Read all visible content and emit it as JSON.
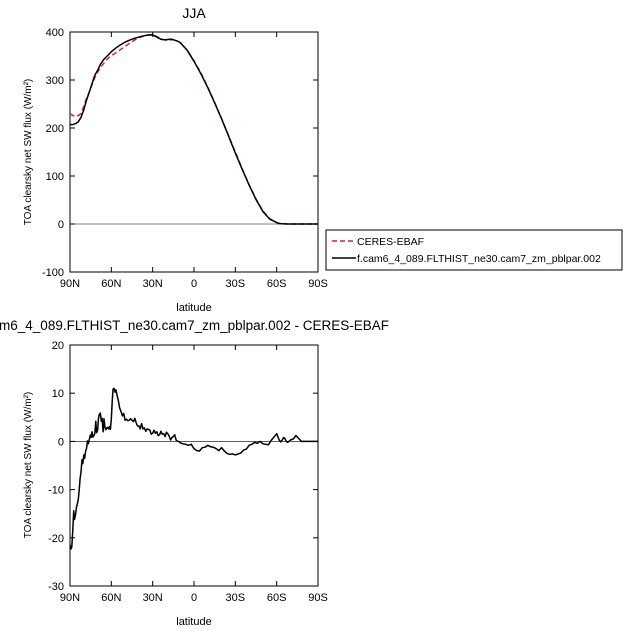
{
  "chart_data": [
    {
      "type": "line",
      "title": "JJA",
      "xlabel": "latitude",
      "ylabel": "TOA clearsky net SW flux (W/m²)",
      "xlim": [
        90,
        -90
      ],
      "ylim": [
        -100,
        400
      ],
      "xtick_values": [
        90,
        60,
        30,
        0,
        -30,
        -60,
        -90
      ],
      "xtick_labels": [
        "90N",
        "60N",
        "30N",
        "0",
        "30S",
        "60S",
        "90S"
      ],
      "ytick_values": [
        -100,
        0,
        100,
        200,
        300,
        400
      ],
      "ytick_labels": [
        "-100",
        "0",
        "100",
        "200",
        "300",
        "400"
      ],
      "legend_position": "right, outside plot",
      "series": [
        {
          "name": "CERES-EBAF",
          "color": "#dd2222",
          "dash": "dashed",
          "x": [
            90,
            88,
            86,
            84,
            82,
            80,
            78,
            76,
            74,
            72,
            70,
            68,
            66,
            64,
            62,
            60,
            57,
            54,
            50,
            46,
            42,
            38,
            35,
            32,
            30,
            28,
            26,
            24,
            22,
            20,
            18,
            16,
            14,
            12,
            10,
            5,
            0,
            -5,
            -10,
            -15,
            -20,
            -25,
            -30,
            -35,
            -40,
            -45,
            -50,
            -55,
            -60,
            -62,
            -64,
            -66,
            -68,
            -70,
            -75,
            -80,
            -90
          ],
          "values": [
            230,
            226,
            224,
            226,
            230,
            245,
            262,
            275,
            290,
            305,
            316,
            326,
            333,
            340,
            346,
            351,
            356,
            362,
            370,
            378,
            385,
            390,
            393,
            394,
            393,
            392,
            389,
            386,
            384,
            383,
            383,
            384,
            383,
            381,
            378,
            363,
            340,
            315,
            285,
            253,
            220,
            185,
            150,
            115,
            82,
            52,
            27,
            11,
            3,
            1,
            0.5,
            0.2,
            0,
            0,
            0,
            0,
            0
          ]
        },
        {
          "name": "f.cam6_4_089.FLTHIST_ne30.cam7_zm_pblpar.002",
          "color": "#000000",
          "dash": "solid",
          "x": [
            90,
            88,
            86,
            84,
            82,
            80,
            78,
            76,
            74,
            72,
            70,
            68,
            66,
            64,
            62,
            60,
            57,
            54,
            50,
            46,
            42,
            38,
            35,
            32,
            30,
            28,
            26,
            24,
            22,
            20,
            18,
            16,
            14,
            12,
            10,
            5,
            0,
            -5,
            -10,
            -15,
            -20,
            -25,
            -30,
            -35,
            -40,
            -45,
            -50,
            -55,
            -60,
            -62,
            -64,
            -66,
            -68,
            -70,
            -75,
            -80,
            -90
          ],
          "values": [
            207,
            207,
            209,
            213,
            222,
            238,
            258,
            275,
            292,
            310,
            320,
            332,
            341,
            347,
            353,
            359,
            366,
            372,
            379,
            384,
            388,
            391,
            393,
            394,
            394,
            391,
            388,
            385,
            384,
            384,
            385,
            385,
            383,
            381,
            378,
            362,
            339,
            313,
            284,
            252,
            219,
            184,
            148,
            114,
            81,
            51,
            26,
            10,
            3,
            1,
            0.5,
            0.2,
            0,
            0,
            0,
            0,
            0
          ]
        }
      ]
    },
    {
      "type": "line",
      "title": "m6_4_089.FLTHIST_ne30.cam7_zm_pblpar.002 - CERES-EBAF",
      "xlabel": "latitude",
      "ylabel": "TOA clearsky net SW flux (W/m²)",
      "xlim": [
        90,
        -90
      ],
      "ylim": [
        -30,
        20
      ],
      "xtick_values": [
        90,
        60,
        30,
        0,
        -30,
        -60,
        -90
      ],
      "xtick_labels": [
        "90N",
        "60N",
        "30N",
        "0",
        "30S",
        "60S",
        "90S"
      ],
      "ytick_values": [
        -30,
        -20,
        -10,
        0,
        10,
        20
      ],
      "ytick_labels": [
        "-30",
        "-20",
        "-10",
        "0",
        "10",
        "20"
      ],
      "series": [
        {
          "color": "#000000",
          "dash": "solid",
          "x": [
            90,
            89.3,
            88.7,
            88,
            87.3,
            86.7,
            86,
            85.3,
            84.7,
            84,
            83.3,
            82.7,
            82,
            81.3,
            80.7,
            80,
            79.3,
            78.7,
            78,
            77.3,
            76.7,
            76,
            75.3,
            74.7,
            74,
            73.3,
            72.7,
            72,
            71.3,
            70.7,
            70,
            69.3,
            68.7,
            68,
            67.3,
            66.7,
            66,
            65.3,
            64.7,
            64,
            63.3,
            62.7,
            62,
            61.3,
            60.7,
            60,
            59.3,
            58.7,
            58,
            57.3,
            56.7,
            56,
            55,
            54,
            53,
            52,
            51,
            50,
            49,
            48,
            47,
            46,
            45,
            44,
            43,
            42,
            41,
            40,
            39,
            38,
            37,
            36,
            35,
            34,
            33,
            32,
            31,
            30,
            29,
            28,
            27,
            26,
            25,
            24,
            23,
            22,
            21,
            20,
            19,
            18,
            17,
            16,
            15,
            14,
            13,
            12,
            11,
            10,
            8,
            6,
            4,
            2,
            0,
            -2,
            -4,
            -6,
            -8,
            -10,
            -12,
            -14,
            -16,
            -18,
            -20,
            -22,
            -24,
            -26,
            -28,
            -30,
            -32,
            -34,
            -36,
            -38,
            -40,
            -42,
            -44,
            -46,
            -48,
            -50,
            -52,
            -54,
            -56,
            -58,
            -60,
            -61,
            -62,
            -63,
            -64,
            -65,
            -66,
            -67,
            -68,
            -70,
            -72,
            -74,
            -76,
            -78,
            -80,
            -82,
            -84,
            -86,
            -88,
            -90
          ],
          "values": [
            -21.5,
            -22.3,
            -21.9,
            -18.4,
            -14.4,
            -16.2,
            -15.2,
            -13.6,
            -13.0,
            -12.0,
            -10.1,
            -7.7,
            -6.4,
            -3.8,
            -4.6,
            -2.8,
            -3.5,
            -2.0,
            -1.5,
            0.1,
            -0.5,
            0.4,
            1.3,
            0.8,
            2.0,
            0.9,
            1.2,
            1.6,
            4.2,
            1.8,
            2.3,
            4.8,
            5.6,
            5.9,
            4.2,
            4.8,
            2.0,
            4.7,
            3.0,
            2.4,
            2.8,
            2.9,
            2.6,
            3.1,
            2.5,
            4.6,
            8.6,
            10.9,
            11.0,
            10.2,
            10.7,
            9.8,
            8.6,
            7.0,
            6.2,
            5.3,
            5.8,
            4.4,
            4.6,
            4.3,
            4.4,
            4.7,
            4.4,
            4.1,
            4.8,
            3.9,
            3.2,
            3.2,
            2.6,
            3.7,
            2.6,
            2.8,
            2.1,
            2.6,
            2.5,
            2.3,
            1.5,
            1.7,
            2.3,
            1.7,
            2.0,
            1.2,
            1.4,
            2.1,
            1.5,
            1.6,
            1.0,
            1.9,
            1.6,
            1.1,
            0.3,
            0.8,
            1.0,
            1.4,
            0.3,
            0.0,
            0.0,
            -0.3,
            -0.5,
            -0.6,
            -0.8,
            -0.6,
            -1.5,
            -1.9,
            -2.0,
            -1.3,
            -1.2,
            -0.8,
            -1.1,
            -1.2,
            -1.5,
            -1.9,
            -1.3,
            -2.0,
            -2.5,
            -2.7,
            -2.6,
            -2.8,
            -2.6,
            -2.4,
            -1.8,
            -1.6,
            -0.8,
            -0.6,
            -0.2,
            -0.4,
            0.0,
            -0.5,
            -0.6,
            -0.7,
            0.2,
            0.9,
            1.6,
            0.9,
            0.2,
            -0.1,
            0.3,
            0.8,
            0.6,
            0.0,
            -0.2,
            0.3,
            0.5,
            1.2,
            0.6,
            0.0,
            0.0,
            0.0,
            0.0,
            0.0,
            0.0,
            0.0
          ]
        }
      ]
    }
  ]
}
